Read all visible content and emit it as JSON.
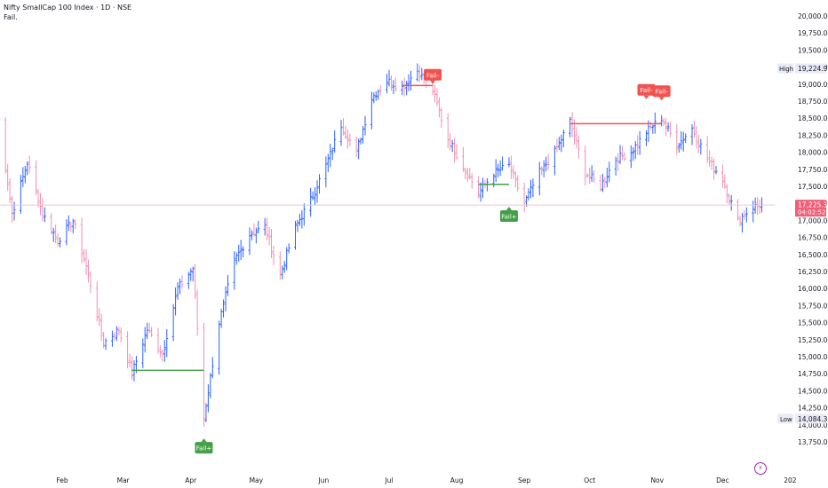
{
  "legend": {
    "title": "Nifty SmallCap 100 Index · 1D · NSE",
    "indicator": "Fail."
  },
  "colors": {
    "up": "#2962ff",
    "down": "#f48fb1",
    "signal_bear": "#f05350",
    "signal_bull": "#43a047",
    "crosshair": "#f0c8cc",
    "price_tag": "#f05f77"
  },
  "icons": {
    "bottom_right": "lightning-icon"
  },
  "chart_data": {
    "type": "ohlc",
    "title": "Nifty SmallCap 100 Index · 1D · NSE",
    "xlabel": "",
    "ylabel": "",
    "x_ticks": [
      "Feb",
      "Mar",
      "Apr",
      "May",
      "Jun",
      "Jul",
      "Aug",
      "Sep",
      "Oct",
      "Nov",
      "Dec",
      "202"
    ],
    "y_ticks": [
      "20,000.00",
      "19,750.00",
      "19,500.00",
      "19,250.00",
      "19,000.00",
      "18,750.00",
      "18,500.00",
      "18,250.00",
      "18,000.00",
      "17,750.00",
      "17,500.00",
      "17,250.00",
      "17,000.00",
      "16,750.00",
      "16,500.00",
      "16,250.00",
      "16,000.00",
      "15,750.00",
      "15,500.00",
      "15,250.00",
      "15,000.00",
      "14,750.00",
      "14,500.00",
      "14,250.00",
      "14,000.00",
      "13,750.00"
    ],
    "ylim": [
      13600,
      20100
    ],
    "high_label": "High",
    "high_value": "19,224.95",
    "low_label": "Low",
    "low_value": "14,084.30",
    "last_price": "17,225.35",
    "countdown": "04:02:52",
    "last_value": 17225.35,
    "grid": false,
    "anchors": [
      {
        "date": "Jan 02",
        "close": 18700
      },
      {
        "date": "Jan 09",
        "close": 17100
      },
      {
        "date": "Jan 16",
        "close": 17850
      },
      {
        "date": "Jan 23",
        "close": 17100
      },
      {
        "date": "Jan 30",
        "close": 16700
      },
      {
        "date": "Feb 06",
        "close": 17000
      },
      {
        "date": "Feb 13",
        "close": 16200
      },
      {
        "date": "Feb 20",
        "close": 15200
      },
      {
        "date": "Feb 27",
        "close": 15400
      },
      {
        "date": "Mar 05",
        "close": 14750
      },
      {
        "date": "Mar 12",
        "close": 15400
      },
      {
        "date": "Mar 19",
        "close": 15050
      },
      {
        "date": "Mar 26",
        "close": 16000
      },
      {
        "date": "Apr 02",
        "close": 16300
      },
      {
        "date": "Apr 07",
        "close": 14100
      },
      {
        "date": "Apr 14",
        "close": 15500
      },
      {
        "date": "Apr 21",
        "close": 16400
      },
      {
        "date": "Apr 28",
        "close": 16800
      },
      {
        "date": "May 05",
        "close": 16900
      },
      {
        "date": "May 12",
        "close": 16200
      },
      {
        "date": "May 19",
        "close": 16900
      },
      {
        "date": "May 26",
        "close": 17300
      },
      {
        "date": "Jun 02",
        "close": 17800
      },
      {
        "date": "Jun 09",
        "close": 18400
      },
      {
        "date": "Jun 16",
        "close": 18000
      },
      {
        "date": "Jun 23",
        "close": 18800
      },
      {
        "date": "Jun 30",
        "close": 19050
      },
      {
        "date": "Jul 07",
        "close": 18950
      },
      {
        "date": "Jul 14",
        "close": 19200
      },
      {
        "date": "Jul 21",
        "close": 18900
      },
      {
        "date": "Jul 28",
        "close": 18200
      },
      {
        "date": "Aug 04",
        "close": 17800
      },
      {
        "date": "Aug 11",
        "close": 17400
      },
      {
        "date": "Aug 18",
        "close": 17700
      },
      {
        "date": "Aug 25",
        "close": 17800
      },
      {
        "date": "Sep 01",
        "close": 17250
      },
      {
        "date": "Sep 08",
        "close": 17700
      },
      {
        "date": "Sep 15",
        "close": 18000
      },
      {
        "date": "Sep 22",
        "close": 18450
      },
      {
        "date": "Sep 29",
        "close": 17700
      },
      {
        "date": "Oct 06",
        "close": 17500
      },
      {
        "date": "Oct 13",
        "close": 17900
      },
      {
        "date": "Oct 20",
        "close": 18000
      },
      {
        "date": "Oct 27",
        "close": 18300
      },
      {
        "date": "Nov 03",
        "close": 18500
      },
      {
        "date": "Nov 10",
        "close": 18100
      },
      {
        "date": "Nov 17",
        "close": 18350
      },
      {
        "date": "Nov 24",
        "close": 17900
      },
      {
        "date": "Dec 01",
        "close": 17600
      },
      {
        "date": "Dec 08",
        "close": 17000
      },
      {
        "date": "Dec 15",
        "close": 17200
      },
      {
        "date": "Dec 19",
        "close": 17225
      }
    ],
    "signals": [
      {
        "label": "Fail-",
        "type": "bear",
        "date": "Jul 21",
        "level": 19000
      },
      {
        "label": "Fail-",
        "type": "bear",
        "date": "Oct 27",
        "level": 18780
      },
      {
        "label": "Fail-",
        "type": "bear",
        "date": "Nov 03",
        "level": 18760
      },
      {
        "label": "Fail+",
        "type": "bull",
        "date": "Apr 07",
        "level": 13800
      },
      {
        "label": "Fail+",
        "type": "bull",
        "date": "Aug 25",
        "level": 17200
      }
    ],
    "levels": [
      {
        "type": "bull",
        "from": "Mar 05",
        "to": "Apr 07",
        "value": 14800
      },
      {
        "type": "bear",
        "from": "Jul 07",
        "to": "Jul 21",
        "value": 18980
      },
      {
        "type": "bull",
        "from": "Aug 11",
        "to": "Aug 25",
        "value": 17530
      },
      {
        "type": "bear",
        "from": "Sep 22",
        "to": "Nov 03",
        "value": 18420
      }
    ]
  }
}
